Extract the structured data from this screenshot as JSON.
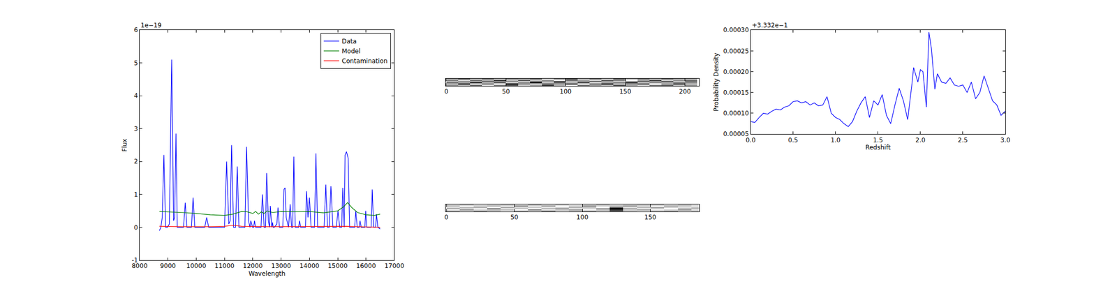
{
  "chart_data": [
    {
      "type": "line",
      "x_label": "Wavelength",
      "y_label": "Flux",
      "annotations": [
        {
          "text": "1e−19"
        }
      ],
      "legend": "upper right",
      "xlim": [
        8000,
        17000
      ],
      "xticks": [
        8000,
        9000,
        10000,
        11000,
        12000,
        13000,
        14000,
        15000,
        16000,
        17000
      ],
      "ylim": [
        -1,
        6
      ],
      "yticks": [
        -1,
        0,
        1,
        2,
        3,
        4,
        5,
        6
      ],
      "series": [
        {
          "name": "Data",
          "color": "#0000ff",
          "x": [
            8700,
            8750,
            8800,
            8857,
            8920,
            8980,
            9050,
            9134,
            9200,
            9240,
            9285,
            9330,
            9400,
            9550,
            9613,
            9670,
            9830,
            9890,
            9950,
            10300,
            10370,
            10440,
            11000,
            11075,
            11150,
            11200,
            11250,
            11320,
            11390,
            11450,
            11510,
            11720,
            11780,
            11850,
            11900,
            11930,
            11990,
            12030,
            12060,
            12100,
            12290,
            12340,
            12400,
            12450,
            12490,
            12550,
            12590,
            12620,
            12670,
            12700,
            12720,
            12760,
            12850,
            12890,
            12940,
            13060,
            13100,
            13140,
            13180,
            13260,
            13280,
            13320,
            13370,
            13410,
            13450,
            13500,
            13620,
            13650,
            13690,
            13860,
            13900,
            13950,
            14000,
            14060,
            14180,
            14230,
            14290,
            14520,
            14580,
            14640,
            14700,
            14760,
            14830,
            14950,
            15010,
            15070,
            15140,
            15180,
            15230,
            15260,
            15310,
            15370,
            15420,
            15600,
            15640,
            15690,
            15760,
            15790,
            15830,
            15960,
            15990,
            16030,
            16180,
            16220,
            16270,
            16340,
            16370,
            16420,
            16500
          ],
          "values": [
            -0.1,
            0,
            0.3,
            2.2,
            0,
            0,
            0.1,
            5.1,
            0.2,
            0.3,
            2.85,
            0,
            0,
            0,
            0.75,
            0,
            0,
            0.9,
            0,
            0,
            0.3,
            0,
            0,
            2.0,
            0.1,
            0.2,
            2.5,
            0,
            0,
            1.85,
            0,
            0,
            2.45,
            0.2,
            0,
            0.2,
            0,
            0,
            0.2,
            0,
            0,
            1.0,
            0,
            0,
            1.65,
            0.2,
            0,
            0.65,
            0,
            0.15,
            0,
            0,
            0.1,
            0.6,
            0,
            0,
            1.15,
            1.2,
            0.3,
            0,
            0.2,
            0.7,
            0,
            0,
            2.15,
            0,
            0,
            0.2,
            0,
            0,
            1.1,
            0.3,
            0.9,
            0,
            0,
            2.25,
            0,
            0,
            1.3,
            0,
            0,
            1.25,
            0,
            0,
            0.5,
            0,
            0,
            1.2,
            0,
            2.2,
            2.3,
            2.1,
            0,
            0,
            0.5,
            0,
            0,
            0.2,
            0,
            0,
            0.5,
            0,
            0,
            1.15,
            0,
            0,
            0.4,
            0,
            -0.05
          ]
        },
        {
          "name": "Model",
          "color": "#008000",
          "x": [
            8700,
            9000,
            9500,
            10000,
            10500,
            11000,
            11300,
            11600,
            11800,
            12000,
            12100,
            12200,
            12300,
            12400,
            12500,
            12700,
            13000,
            13500,
            14000,
            14500,
            15000,
            15200,
            15350,
            15500,
            15700,
            16000,
            16300,
            16500
          ],
          "values": [
            0.48,
            0.47,
            0.45,
            0.42,
            0.38,
            0.36,
            0.4,
            0.48,
            0.47,
            0.42,
            0.48,
            0.4,
            0.47,
            0.42,
            0.5,
            0.45,
            0.48,
            0.47,
            0.48,
            0.44,
            0.5,
            0.62,
            0.75,
            0.6,
            0.45,
            0.38,
            0.36,
            0.4
          ]
        },
        {
          "name": "Contamination",
          "color": "#ff0000",
          "x": [
            8700,
            9500,
            10500,
            11000,
            11300,
            11600,
            12500,
            14000,
            15300,
            16000,
            16500
          ],
          "values": [
            0.03,
            0.02,
            0.02,
            0.03,
            0.06,
            0.03,
            0.02,
            0.02,
            0.03,
            0.01,
            0.0
          ]
        }
      ]
    },
    {
      "type": "heatmap",
      "tick_labels": "x",
      "xlim": [
        -0.5,
        212
      ],
      "xticks": [
        0,
        50,
        100,
        150,
        200
      ],
      "ylim": [
        -0.5,
        5.5
      ],
      "x": [
        5,
        15,
        25,
        35,
        45,
        55,
        65,
        75,
        85,
        95,
        105,
        115,
        125,
        135,
        145,
        155,
        165,
        175,
        185,
        195,
        205
      ],
      "y": [
        0,
        1,
        2,
        3,
        4,
        5
      ],
      "cells": [
        [
          0.55,
          0.62,
          0.48,
          0.7,
          0.52,
          0.45,
          0.66,
          0.58,
          0.4,
          0.61,
          0.72,
          0.5,
          0.57,
          0.63,
          0.44,
          0.59,
          0.68,
          0.51,
          0.47,
          0.64,
          0.56
        ],
        [
          0.6,
          0.42,
          0.67,
          0.53,
          0.71,
          0.38,
          0.55,
          0.64,
          0.49,
          0.57,
          0.46,
          0.69,
          0.52,
          0.41,
          0.62,
          0.55,
          0.48,
          0.73,
          0.58,
          0.45,
          0.61
        ],
        [
          0.47,
          0.58,
          0.35,
          0.62,
          0.44,
          0.66,
          0.51,
          0.3,
          0.63,
          0.48,
          0.59,
          0.42,
          0.7,
          0.56,
          0.5,
          0.38,
          0.64,
          0.53,
          0.61,
          0.49,
          0.54
        ],
        [
          0.63,
          0.51,
          0.6,
          0.45,
          0.57,
          0.52,
          0.69,
          0.47,
          0.58,
          0.36,
          0.65,
          0.54,
          0.43,
          0.6,
          0.67,
          0.52,
          0.45,
          0.59,
          0.4,
          0.66,
          0.5
        ],
        [
          0.52,
          0.66,
          0.49,
          0.58,
          0.4,
          0.61,
          0.46,
          0.62,
          0.54,
          0.68,
          0.5,
          0.57,
          0.64,
          0.46,
          0.53,
          0.71,
          0.56,
          0.42,
          0.63,
          0.55,
          0.48
        ],
        [
          0.58,
          0.45,
          0.63,
          0.51,
          0.67,
          0.54,
          0.6,
          0.49,
          0.72,
          0.55,
          0.43,
          0.62,
          0.51,
          0.68,
          0.47,
          0.6,
          0.52,
          0.65,
          0.5,
          0.59,
          0.62
        ]
      ]
    },
    {
      "type": "heatmap",
      "tick_labels": "x",
      "xlim": [
        -0.5,
        186
      ],
      "xticks": [
        0,
        50,
        100,
        150
      ],
      "ylim": [
        -0.5,
        5.5
      ],
      "x": [
        5,
        15,
        25,
        35,
        45,
        55,
        65,
        75,
        85,
        95,
        105,
        115,
        125,
        135,
        145,
        155,
        165,
        175,
        185
      ],
      "y": [
        0,
        1,
        2,
        3,
        4,
        5
      ],
      "cells": [
        [
          0.5,
          0.61,
          0.45,
          0.57,
          0.66,
          0.48,
          0.59,
          0.42,
          0.63,
          0.55,
          0.47,
          0.6,
          0.35,
          0.58,
          0.64,
          0.51,
          0.46,
          0.62,
          0.55
        ],
        [
          0.62,
          0.44,
          0.58,
          0.49,
          0.53,
          0.67,
          0.41,
          0.6,
          0.52,
          0.46,
          0.64,
          0.5,
          0.15,
          0.54,
          0.47,
          0.63,
          0.58,
          0.44,
          0.6
        ],
        [
          0.46,
          0.57,
          0.63,
          0.4,
          0.6,
          0.52,
          0.65,
          0.5,
          0.44,
          0.61,
          0.56,
          0.45,
          0.05,
          0.48,
          0.62,
          0.53,
          0.67,
          0.52,
          0.49
        ],
        [
          0.59,
          0.5,
          0.47,
          0.66,
          0.45,
          0.58,
          0.54,
          0.62,
          0.57,
          0.48,
          0.52,
          0.66,
          0.3,
          0.61,
          0.5,
          0.44,
          0.56,
          0.6,
          0.53
        ],
        [
          0.53,
          0.64,
          0.55,
          0.52,
          0.61,
          0.43,
          0.6,
          0.47,
          0.66,
          0.56,
          0.43,
          0.58,
          0.52,
          0.45,
          0.57,
          0.65,
          0.49,
          0.55,
          0.61
        ],
        [
          0.57,
          0.48,
          0.61,
          0.55,
          0.5,
          0.62,
          0.46,
          0.58,
          0.51,
          0.64,
          0.59,
          0.49,
          0.62,
          0.56,
          0.53,
          0.47,
          0.61,
          0.5,
          0.58
        ]
      ]
    },
    {
      "type": "line",
      "x_label": "Redshift",
      "y_label": "Probability Density",
      "annotations": [
        {
          "text": "+3.332e−1"
        }
      ],
      "xlim": [
        0,
        3
      ],
      "xticks": [
        {
          "value": 0,
          "label": "0.0"
        },
        0.5,
        {
          "value": 1,
          "label": "1.0"
        },
        1.5,
        {
          "value": 2,
          "label": "2.0"
        },
        2.5,
        {
          "value": 3,
          "label": "3.0"
        }
      ],
      "ylim": [
        5e-05,
        0.0003
      ],
      "yticks": [
        {
          "value": 5e-05,
          "label": "0.00005"
        },
        {
          "value": 0.0001,
          "label": "0.00010"
        },
        {
          "value": 0.00015,
          "label": "0.00015"
        },
        {
          "value": 0.0002,
          "label": "0.00020"
        },
        {
          "value": 0.00025,
          "label": "0.00025"
        },
        {
          "value": 0.0003,
          "label": "0.00030"
        }
      ],
      "series": [
        {
          "color": "#0000ff",
          "x": [
            0.0,
            0.05,
            0.1,
            0.15,
            0.2,
            0.25,
            0.3,
            0.35,
            0.4,
            0.45,
            0.5,
            0.55,
            0.6,
            0.65,
            0.7,
            0.75,
            0.8,
            0.85,
            0.9,
            0.95,
            1.0,
            1.05,
            1.1,
            1.15,
            1.2,
            1.25,
            1.3,
            1.35,
            1.4,
            1.45,
            1.5,
            1.55,
            1.6,
            1.65,
            1.7,
            1.75,
            1.8,
            1.85,
            1.9,
            1.92,
            1.97,
            2.0,
            2.03,
            2.07,
            2.1,
            2.13,
            2.17,
            2.2,
            2.25,
            2.3,
            2.35,
            2.4,
            2.45,
            2.5,
            2.55,
            2.6,
            2.65,
            2.7,
            2.75,
            2.8,
            2.85,
            2.9,
            2.95,
            3.0
          ],
          "values": [
            8e-05,
            7.8e-05,
            9e-05,
            0.0001,
            9.8e-05,
            0.000105,
            0.00011,
            0.000108,
            0.000115,
            0.000118,
            0.000128,
            0.00013,
            0.000125,
            0.000128,
            0.00012,
            0.000125,
            0.000118,
            0.00012,
            0.00014,
            0.0001,
            9e-05,
            8.5e-05,
            7.5e-05,
            6.8e-05,
            8e-05,
            0.000105,
            0.000125,
            0.00014,
            9e-05,
            0.00013,
            0.00012,
            0.000145,
            9.5e-05,
            7.5e-05,
            0.00012,
            0.00016,
            0.00013,
            8.5e-05,
            0.00017,
            0.00021,
            0.000175,
            0.000205,
            0.0002,
            0.000115,
            0.000295,
            0.000255,
            0.000158,
            0.000195,
            0.000175,
            0.000172,
            0.000185,
            0.000168,
            0.000165,
            0.000168,
            0.00015,
            0.000175,
            0.000135,
            0.00015,
            0.00019,
            0.00016,
            0.00013,
            0.00012,
            9.5e-05,
            0.000105
          ]
        }
      ]
    }
  ]
}
